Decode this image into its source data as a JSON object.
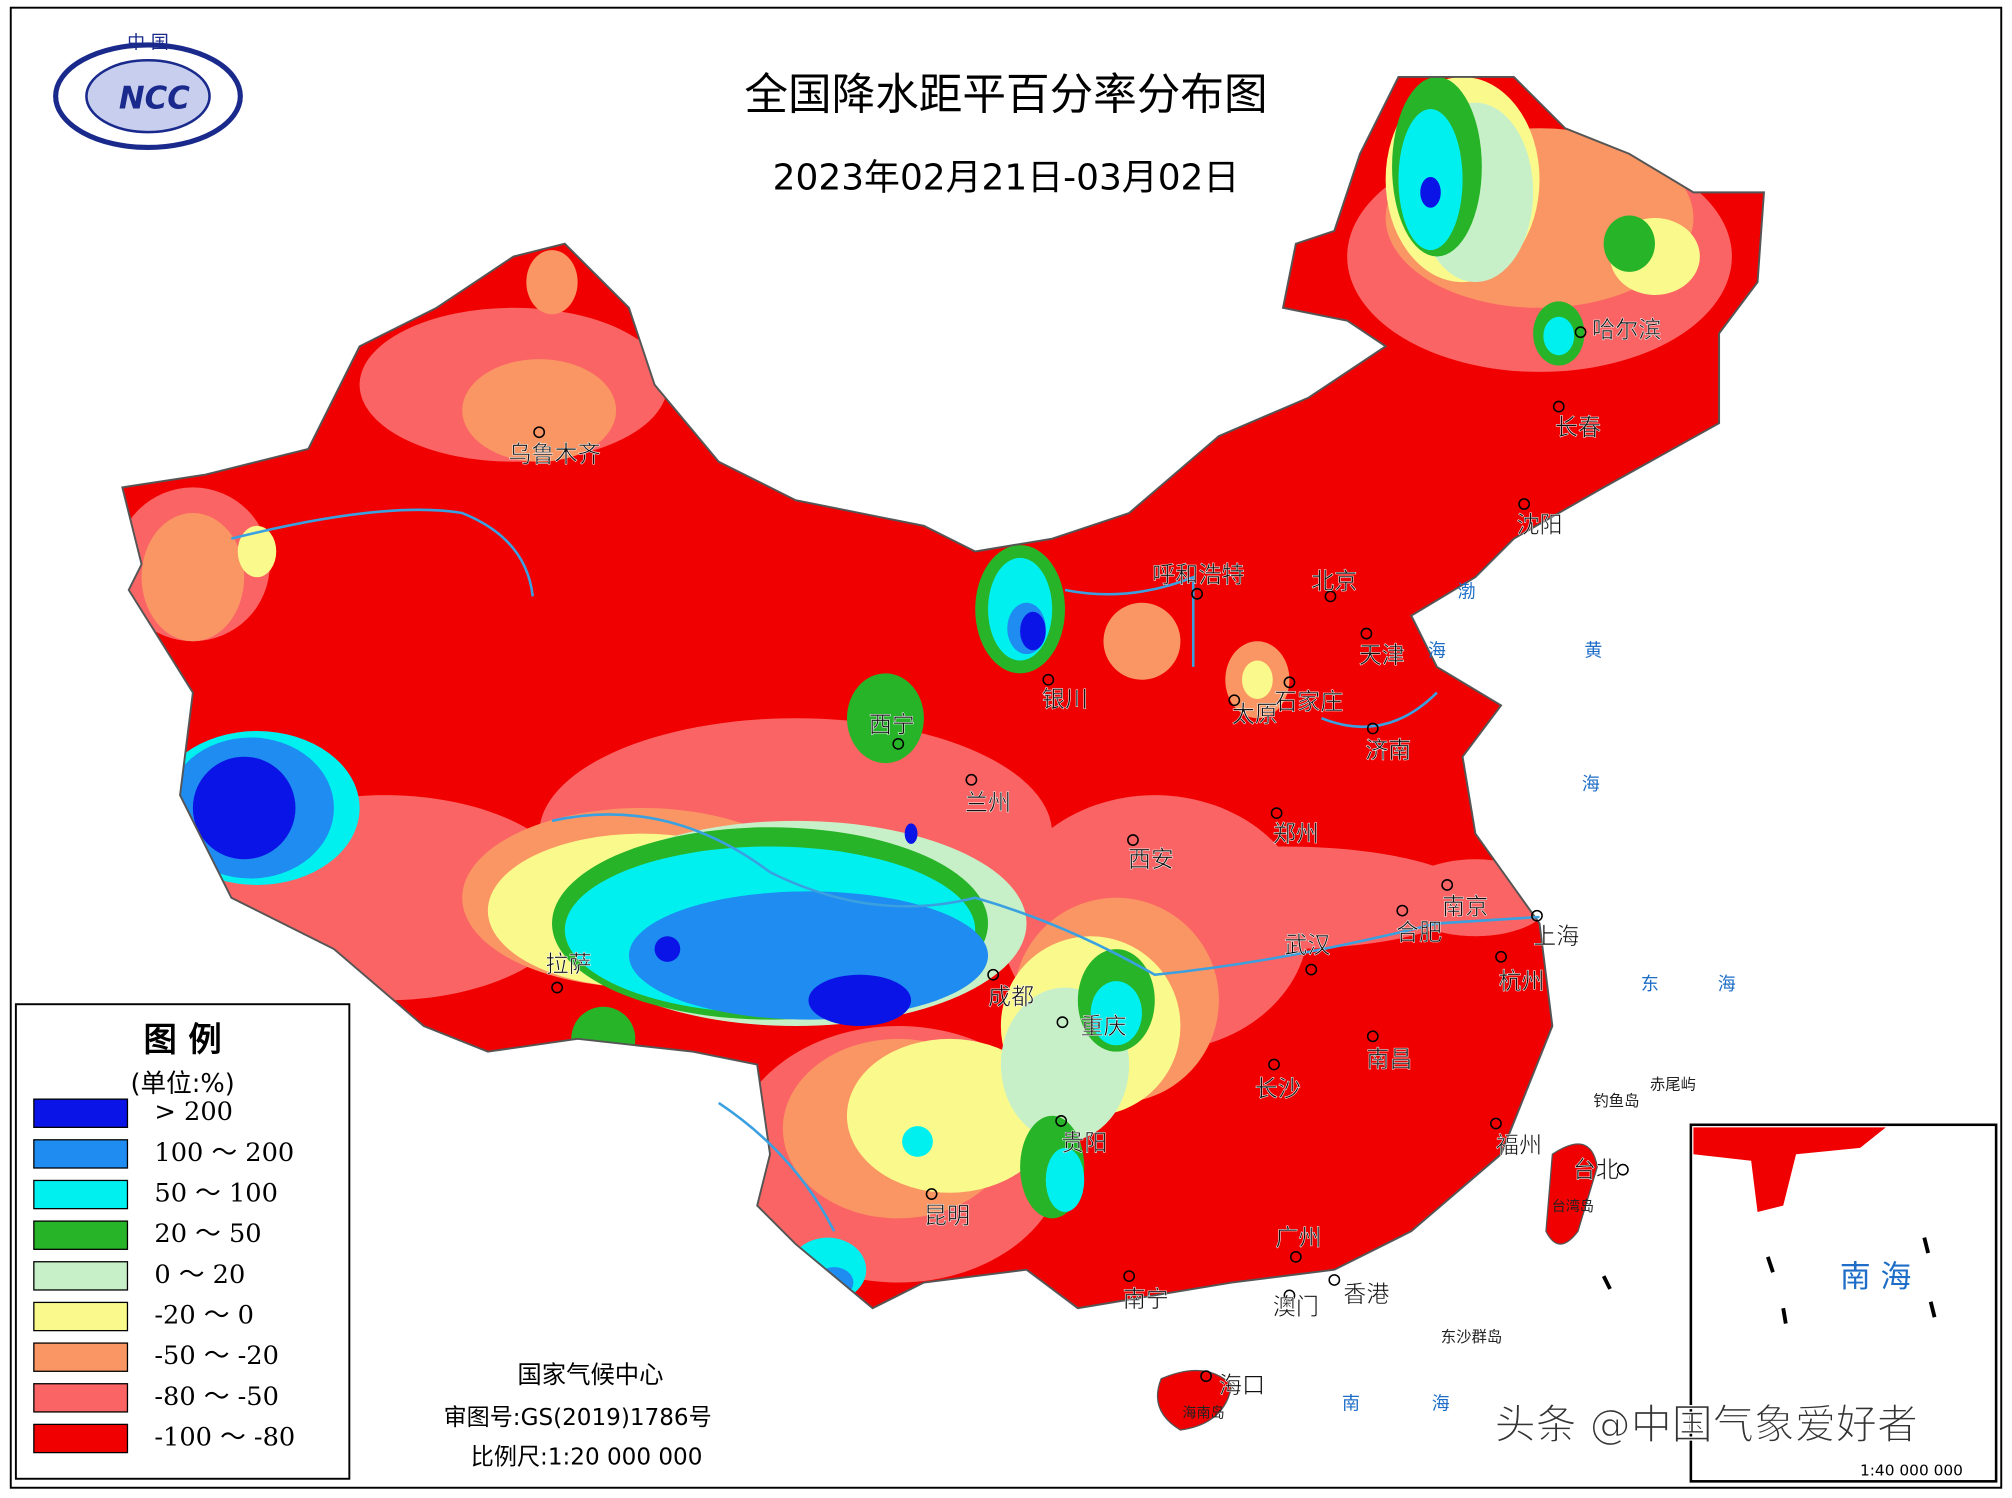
{
  "title": "全国降水距平百分率分布图",
  "subtitle": "2023年02月21日-03月02日",
  "logo": {
    "top": "中 国",
    "name": "NCC"
  },
  "legend": {
    "title": "图 例",
    "unit": "(单位:%)",
    "items": [
      {
        "label": "> 200",
        "color": "#0a14e6"
      },
      {
        "label": "100 ～ 200",
        "color": "#1e8cf0"
      },
      {
        "label": "50 ～ 100",
        "color": "#00f0f0"
      },
      {
        "label": "20 ～ 50",
        "color": "#28b428"
      },
      {
        "label": "0 ～ 20",
        "color": "#c8f0c8"
      },
      {
        "label": "-20 ～ 0",
        "color": "#fafa8c"
      },
      {
        "label": "-50 ～ -20",
        "color": "#fa9664"
      },
      {
        "label": "-80 ～ -50",
        "color": "#fa6464"
      },
      {
        "label": "-100 ～ -80",
        "color": "#f00000"
      }
    ]
  },
  "cities": [
    "乌鲁木齐",
    "呼和浩特",
    "北京",
    "天津",
    "石家庄",
    "太原",
    "银川",
    "西宁",
    "兰州",
    "济南",
    "沈阳",
    "长春",
    "哈尔滨",
    "郑州",
    "西安",
    "南京",
    "合肥",
    "上海",
    "武汉",
    "杭州",
    "成都",
    "重庆",
    "拉萨",
    "长沙",
    "南昌",
    "贵阳",
    "福州",
    "台北",
    "昆明",
    "广州",
    "南宁",
    "香港",
    "澳门",
    "海口"
  ],
  "places": [
    "渤",
    "海",
    "黄",
    "海",
    "东",
    "海",
    "南",
    "海",
    "钓鱼岛",
    "赤尾屿",
    "东沙群岛",
    "台湾岛",
    "海南岛"
  ],
  "footer": {
    "org": "国家气候中心",
    "approval": "审图号:GS(2019)1786号",
    "scale": "比例尺:1:20 000 000"
  },
  "inset": {
    "label": "南 海",
    "scale": "1:40 000 000"
  },
  "watermark": "头条 @中国气象爱好者"
}
